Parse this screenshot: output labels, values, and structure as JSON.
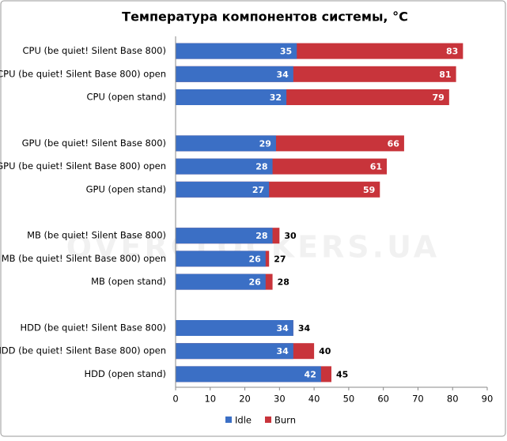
{
  "chart_data": {
    "type": "overlap-barh",
    "title": "Температура компонентов системы, °C",
    "watermark": "OVERCLOCKERS.UA",
    "categories": [
      "CPU (be quiet! Silent Base 800)",
      "CPU (be quiet! Silent Base 800) open",
      "CPU (open stand)",
      null,
      "GPU (be quiet! Silent Base 800)",
      "GPU (be quiet! Silent Base 800) open",
      "GPU (open stand)",
      null,
      "MB (be quiet! Silent Base 800)",
      "MB (be quiet! Silent Base 800) open",
      "MB (open stand)",
      null,
      "HDD (be quiet! Silent Base 800)",
      "HDD (be quiet! Silent Base 800) open",
      "HDD (open stand)"
    ],
    "series": [
      {
        "name": "Burn",
        "color": "#c8343b",
        "values": [
          83,
          81,
          79,
          null,
          66,
          61,
          59,
          null,
          30,
          27,
          28,
          null,
          34,
          40,
          45
        ]
      },
      {
        "name": "Idle",
        "color": "#3b6fc5",
        "values": [
          35,
          34,
          32,
          null,
          29,
          28,
          27,
          null,
          28,
          26,
          26,
          null,
          34,
          34,
          42
        ]
      }
    ],
    "legend_order": [
      1,
      0
    ],
    "xlim": [
      0,
      90
    ],
    "xticks": [
      0,
      10,
      20,
      30,
      40,
      50,
      60,
      70,
      80,
      90
    ],
    "grid": false
  }
}
